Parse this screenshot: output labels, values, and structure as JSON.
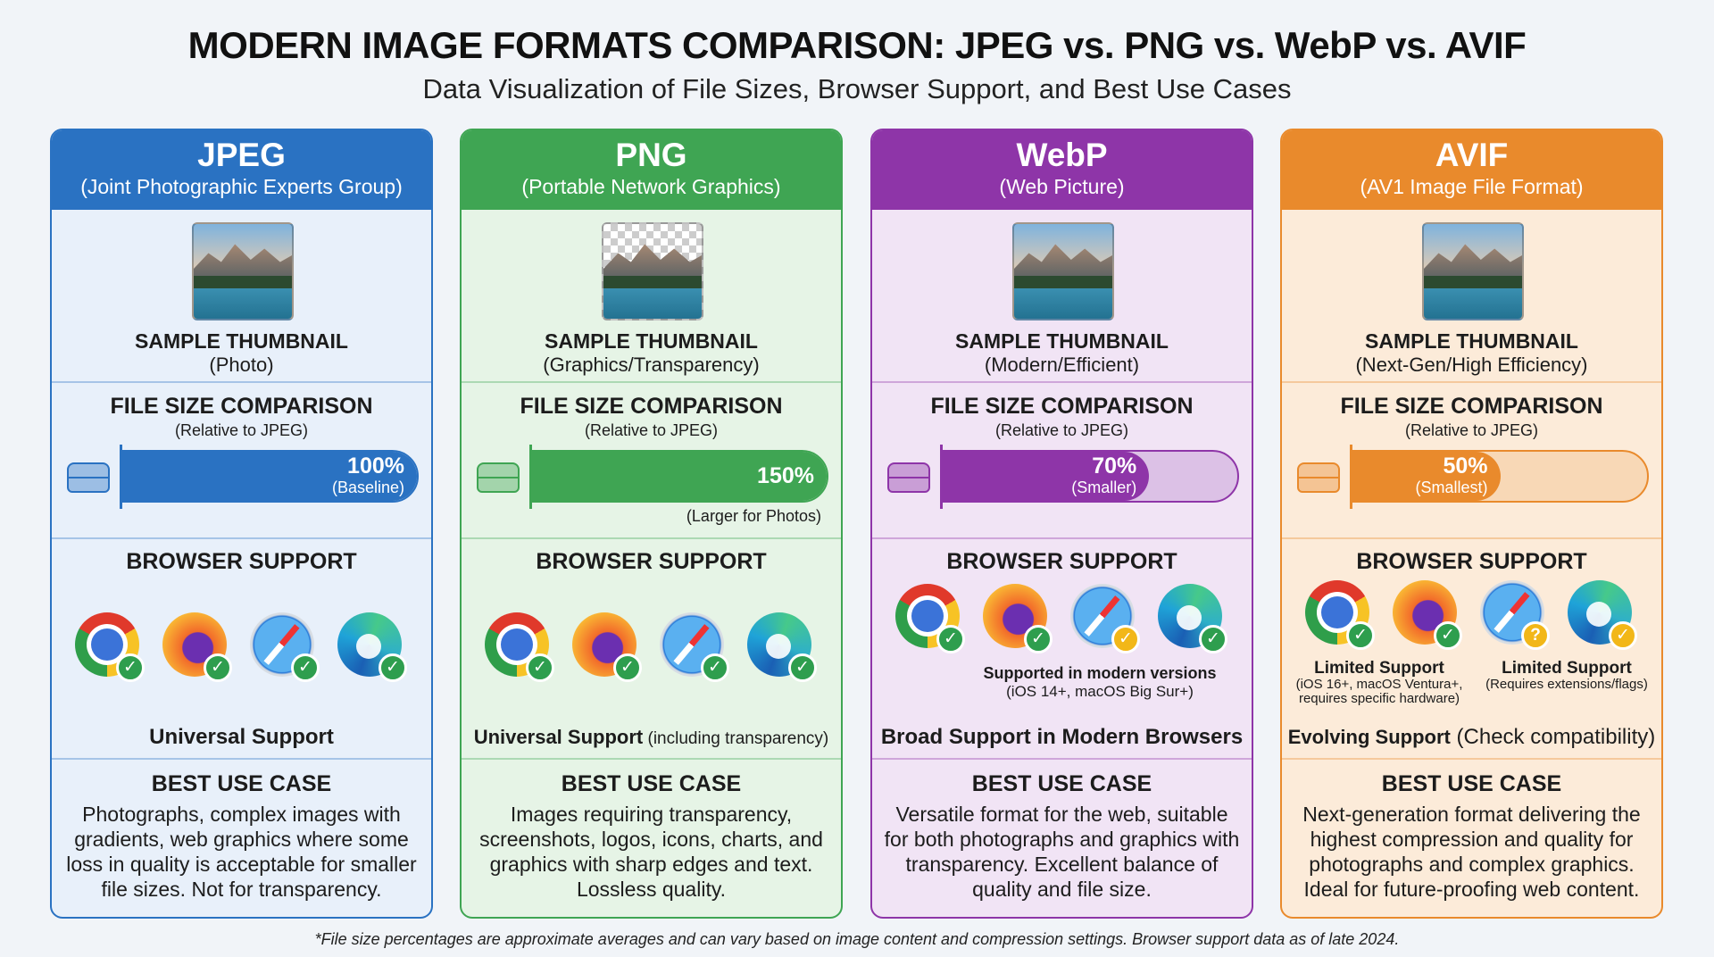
{
  "title": "MODERN IMAGE FORMATS COMPARISON: JPEG vs. PNG vs. WebP vs. AVIF",
  "subtitle": "Data Visualization of File Sizes, Browser Support, and Best Use Cases",
  "footnote": "*File size percentages are approximate averages and can vary based on image content and compression settings. Browser support data as of late 2024.",
  "sections": {
    "thumbnail_label": "SAMPLE THUMBNAIL",
    "file_size_title": "FILE SIZE COMPARISON",
    "file_size_subtitle": "(Relative to JPEG)",
    "browser_support_title": "BROWSER SUPPORT",
    "best_use_title": "BEST USE CASE"
  },
  "browsers": [
    "chrome",
    "firefox",
    "safari",
    "edge"
  ],
  "cards": [
    {
      "name": "JPEG",
      "full_name": "(Joint Photographic Experts Group)",
      "accent": "#2a72c2",
      "bg": "#e8f0fa",
      "thumb_note": "(Photo)",
      "transparent_thumb": false,
      "size_value": 100,
      "size_label": "100%",
      "size_note": "(Baseline)",
      "size_below": "",
      "badges": [
        {
          "type": "check",
          "color": "#2e9e4e"
        },
        {
          "type": "check",
          "color": "#2e9e4e"
        },
        {
          "type": "check",
          "color": "#2e9e4e"
        },
        {
          "type": "check",
          "color": "#2e9e4e"
        }
      ],
      "support_notes": [],
      "support_bold": "Universal Support",
      "support_rest": "",
      "best_use": "Photographs, complex images with gradients, web graphics where some loss in quality is acceptable for smaller file sizes. Not for transparency."
    },
    {
      "name": "PNG",
      "full_name": "(Portable Network Graphics)",
      "accent": "#3fa553",
      "bg": "#e6f4e6",
      "thumb_note": "(Graphics/Transparency)",
      "transparent_thumb": true,
      "size_value": 150,
      "size_label": "150%",
      "size_note": "",
      "size_below": "(Larger for Photos)",
      "badges": [
        {
          "type": "check",
          "color": "#2e9e4e"
        },
        {
          "type": "check",
          "color": "#2e9e4e"
        },
        {
          "type": "check",
          "color": "#2e9e4e"
        },
        {
          "type": "check",
          "color": "#2e9e4e"
        }
      ],
      "support_notes": [],
      "support_bold": "Universal Support",
      "support_rest": " (including transparency)",
      "best_use": "Images requiring transparency, screenshots, logos, icons, charts, and graphics with sharp edges and text. Lossless quality."
    },
    {
      "name": "WebP",
      "full_name": "(Web Picture)",
      "accent": "#8e35a8",
      "bg": "#f1e4f5",
      "thumb_note": "(Modern/Efficient)",
      "transparent_thumb": false,
      "size_value": 70,
      "size_label": "70%",
      "size_note": "(Smaller)",
      "size_below": "",
      "badges": [
        {
          "type": "check",
          "color": "#2e9e4e"
        },
        {
          "type": "check",
          "color": "#2e9e4e"
        },
        {
          "type": "check",
          "color": "#f2b718"
        },
        {
          "type": "check",
          "color": "#2e9e4e"
        }
      ],
      "support_notes": [
        {
          "bold": "Supported in modern versions",
          "text": "(iOS 14+, macOS Big Sur+)"
        }
      ],
      "support_bold": "Broad Support in Modern Browsers",
      "support_rest": "",
      "best_use": "Versatile format for the web, suitable for both photographs and graphics with transparency. Excellent balance of quality and file size."
    },
    {
      "name": "AVIF",
      "full_name": "(AV1 Image File Format)",
      "accent": "#e98a2c",
      "bg": "#fcebd9",
      "thumb_note": "(Next-Gen/High Efficiency)",
      "transparent_thumb": false,
      "size_value": 50,
      "size_label": "50%",
      "size_note": "(Smallest)",
      "size_below": "",
      "badges": [
        {
          "type": "check",
          "color": "#2e9e4e"
        },
        {
          "type": "check",
          "color": "#2e9e4e"
        },
        {
          "type": "question",
          "color": "#f2b718"
        },
        {
          "type": "check",
          "color": "#f2b718"
        }
      ],
      "support_notes": [
        {
          "bold": "Limited Support",
          "text": "(iOS 16+, macOS Ventura+, requires specific hardware)"
        },
        {
          "bold": "Limited Support",
          "text": "(Requires extensions/flags)"
        }
      ],
      "support_bold": "Evolving Support",
      "support_rest": " (Check compatibility)",
      "best_use": "Next-generation format delivering the highest compression and quality for photographs and complex graphics. Ideal for future-proofing web content."
    }
  ]
}
